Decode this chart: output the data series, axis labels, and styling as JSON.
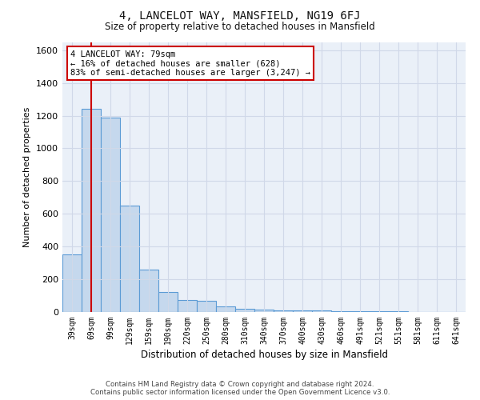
{
  "title": "4, LANCELOT WAY, MANSFIELD, NG19 6FJ",
  "subtitle": "Size of property relative to detached houses in Mansfield",
  "xlabel": "Distribution of detached houses by size in Mansfield",
  "ylabel": "Number of detached properties",
  "categories": [
    "39sqm",
    "69sqm",
    "99sqm",
    "129sqm",
    "159sqm",
    "190sqm",
    "220sqm",
    "250sqm",
    "280sqm",
    "310sqm",
    "340sqm",
    "370sqm",
    "400sqm",
    "430sqm",
    "460sqm",
    "491sqm",
    "521sqm",
    "551sqm",
    "581sqm",
    "611sqm",
    "641sqm"
  ],
  "values": [
    350,
    1240,
    1190,
    650,
    260,
    120,
    75,
    70,
    35,
    20,
    15,
    12,
    10,
    8,
    6,
    5,
    4,
    3,
    2,
    2,
    2
  ],
  "bar_color": "#c5d8ed",
  "bar_edge_color": "#5b9bd5",
  "grid_color": "#d0d8e8",
  "background_color": "#eaf0f8",
  "vline_x": 1,
  "vline_color": "#cc0000",
  "annotation_text": "4 LANCELOT WAY: 79sqm\n← 16% of detached houses are smaller (628)\n83% of semi-detached houses are larger (3,247) →",
  "annotation_box_color": "#ffffff",
  "annotation_box_edge": "#cc0000",
  "ylim": [
    0,
    1650
  ],
  "yticks": [
    0,
    200,
    400,
    600,
    800,
    1000,
    1200,
    1400,
    1600
  ],
  "footer": "Contains HM Land Registry data © Crown copyright and database right 2024.\nContains public sector information licensed under the Open Government Licence v3.0."
}
